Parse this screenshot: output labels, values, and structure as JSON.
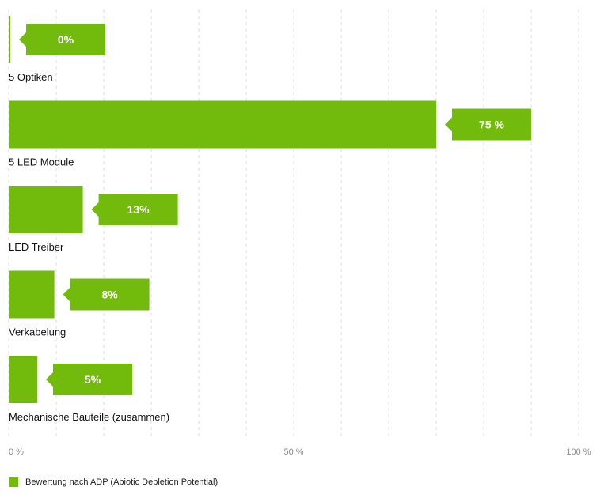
{
  "chart_data": {
    "type": "bar",
    "orientation": "horizontal",
    "categories": [
      "5 Optiken",
      "5 LED Module",
      "LED Treiber",
      "Verkabelung",
      "Mechanische Bauteile (zusammen)"
    ],
    "values": [
      0,
      75,
      13,
      8,
      5
    ],
    "data_labels": [
      "0%",
      "75 %",
      "13%",
      "8%",
      "5%"
    ],
    "series": [
      {
        "name": "Bewertung nach ADP (Abiotic Depletion Potential)",
        "values": [
          0,
          75,
          13,
          8,
          5
        ]
      }
    ],
    "x_ticks": [
      {
        "value": 0,
        "label": "0 %"
      },
      {
        "value": 50,
        "label": "50 %"
      },
      {
        "value": 100,
        "label": "100 %"
      }
    ],
    "xlim": [
      0,
      100
    ],
    "grid": true,
    "grid_style": "dashed-vertical",
    "legend_placement": "bottom-left",
    "bar_color": "#72bb0c",
    "grid_color": "#dddddd",
    "title": "",
    "xlabel": "",
    "ylabel": ""
  }
}
